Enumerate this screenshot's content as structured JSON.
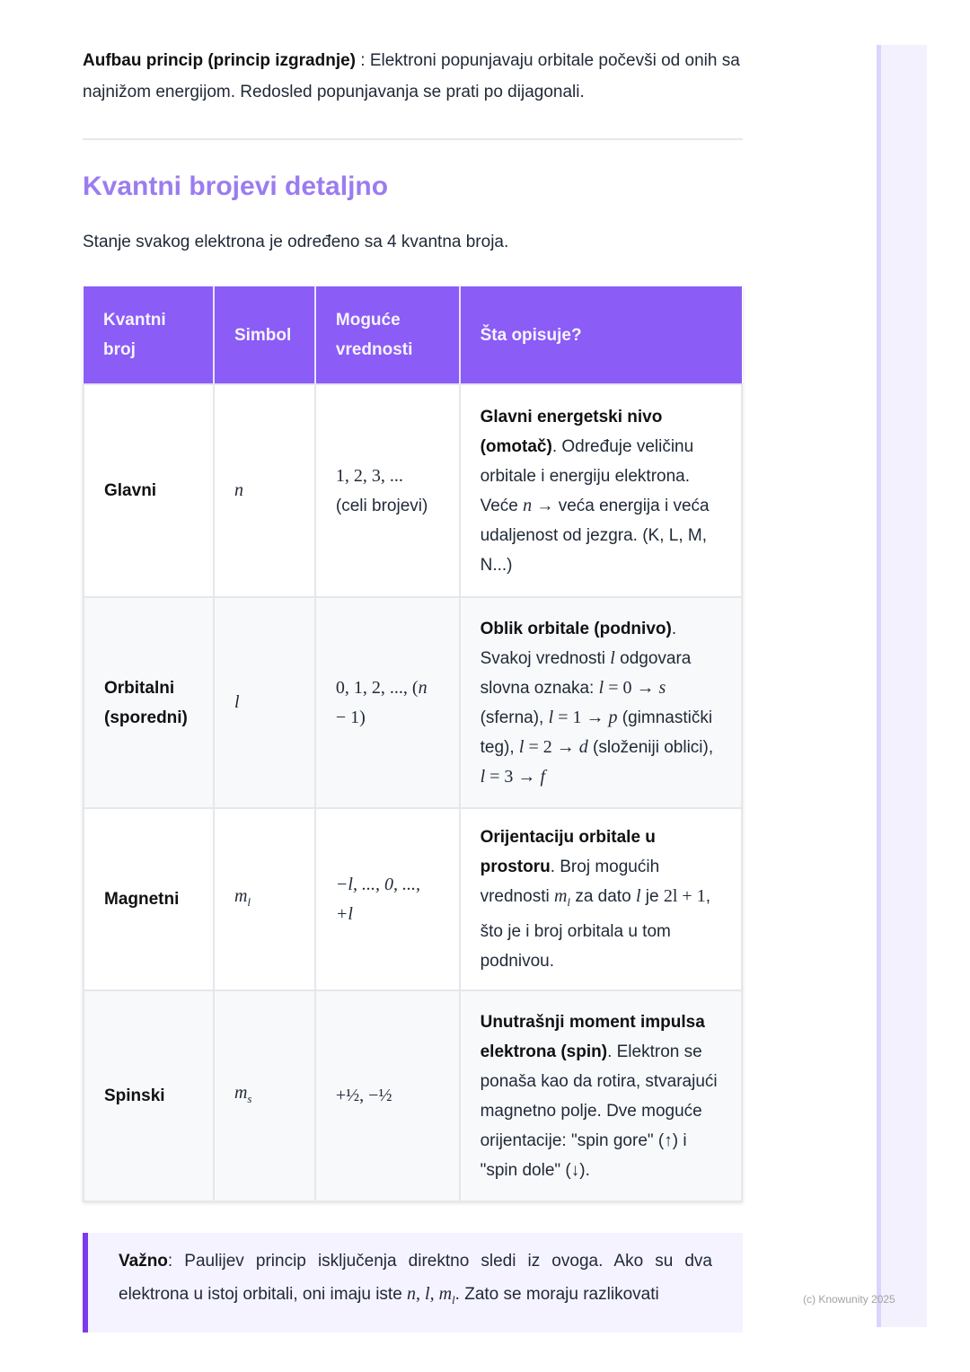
{
  "aufbau": {
    "bold": "Aufbau princip (princip izgradnje)",
    "text": " : Elektroni popunjavaju orbitale počevši od onih sa najnižom energijom. Redosled popunjavanja se prati po dijagonali."
  },
  "section_title": "Kvantni brojevi detaljno",
  "intro": "Stanje svakog elektrona je određeno sa 4 kvantna broja.",
  "table": {
    "headers": [
      "Kvantni broj",
      "Simbol",
      "Moguće vrednosti",
      "Šta opisuje?"
    ],
    "rows": [
      {
        "name": "Glavni",
        "symbol": [
          {
            "t": "n",
            "s": "m"
          }
        ],
        "values": [
          {
            "t": "1, 2, 3, ...",
            "s": "mu"
          },
          {
            "t": " (celi brojevi)",
            "s": ""
          }
        ],
        "desc": [
          {
            "t": "Glavni energetski nivo (omotač)",
            "s": "b"
          },
          {
            "t": ". Određuje veličinu orbitale i energiju elektrona. Veće ",
            "s": ""
          },
          {
            "t": "n",
            "s": "m"
          },
          {
            "t": " → veća energija i veća udaljenost od jezgra. (K, L, M, N...)",
            "s": ""
          }
        ]
      },
      {
        "name": "Orbitalni (sporedni)",
        "symbol": [
          {
            "t": "l",
            "s": "m"
          }
        ],
        "values": [
          {
            "t": "0, 1, 2, ..., (",
            "s": "mu"
          },
          {
            "t": "n",
            "s": "m"
          },
          {
            "t": " − 1)",
            "s": "mu"
          }
        ],
        "desc": [
          {
            "t": "Oblik orbitale (podnivo)",
            "s": "b"
          },
          {
            "t": ". Svakoj vrednosti ",
            "s": ""
          },
          {
            "t": "l",
            "s": "m"
          },
          {
            "t": " odgovara slovna oznaka: ",
            "s": ""
          },
          {
            "t": "l",
            "s": "m"
          },
          {
            "t": " = 0 → ",
            "s": "mu"
          },
          {
            "t": "s",
            "s": "m"
          },
          {
            "t": " (sferna), ",
            "s": ""
          },
          {
            "t": "l",
            "s": "m"
          },
          {
            "t": " = 1 → ",
            "s": "mu"
          },
          {
            "t": "p",
            "s": "m"
          },
          {
            "t": " (gimnastički teg), ",
            "s": ""
          },
          {
            "t": "l",
            "s": "m"
          },
          {
            "t": " = 2 → ",
            "s": "mu"
          },
          {
            "t": "d",
            "s": "m"
          },
          {
            "t": " (složeniji oblici), ",
            "s": ""
          },
          {
            "t": "l",
            "s": "m"
          },
          {
            "t": " = 3 → ",
            "s": "mu"
          },
          {
            "t": "f",
            "s": "m"
          }
        ]
      },
      {
        "name": "Magnetni",
        "symbol": [
          {
            "t": "m",
            "s": "m"
          },
          {
            "t": "l",
            "s": "sub"
          }
        ],
        "values": [
          {
            "t": "−l, ..., 0, ..., +l",
            "s": "m"
          }
        ],
        "desc": [
          {
            "t": "Orijentaciju orbitale u prostoru",
            "s": "b"
          },
          {
            "t": ". Broj mogućih vrednosti ",
            "s": ""
          },
          {
            "t": "m",
            "s": "m"
          },
          {
            "t": "l",
            "s": "sub"
          },
          {
            "t": " za dato ",
            "s": ""
          },
          {
            "t": "l",
            "s": "m"
          },
          {
            "t": " je ",
            "s": ""
          },
          {
            "t": "2l + 1",
            "s": "mu"
          },
          {
            "t": ", što je i broj orbitala u tom podnivou.",
            "s": ""
          }
        ]
      },
      {
        "name": "Spinski",
        "symbol": [
          {
            "t": "m",
            "s": "m"
          },
          {
            "t": "s",
            "s": "sub"
          }
        ],
        "values": [
          {
            "t": "+½, −½",
            "s": "mu"
          }
        ],
        "desc": [
          {
            "t": "Unutrašnji moment impulsa elektrona (spin)",
            "s": "b"
          },
          {
            "t": ". Elektron se ponaša kao da rotira, stvarajući magnetno polje. Dve moguće orijentacije: \"spin gore\" (↑) i \"spin dole\" (↓).",
            "s": ""
          }
        ]
      }
    ]
  },
  "callout": [
    {
      "t": "Važno",
      "s": "b"
    },
    {
      "t": ": Paulijev princip isključenja direktno sledi iz ovoga. Ako su dva elektrona u istoj orbitali, oni imaju iste ",
      "s": ""
    },
    {
      "t": "n, l, m",
      "s": "m"
    },
    {
      "t": "l",
      "s": "sub"
    },
    {
      "t": ". Zato se moraju razlikovati",
      "s": ""
    }
  ],
  "watermark": "(c) Knowunity 2025"
}
